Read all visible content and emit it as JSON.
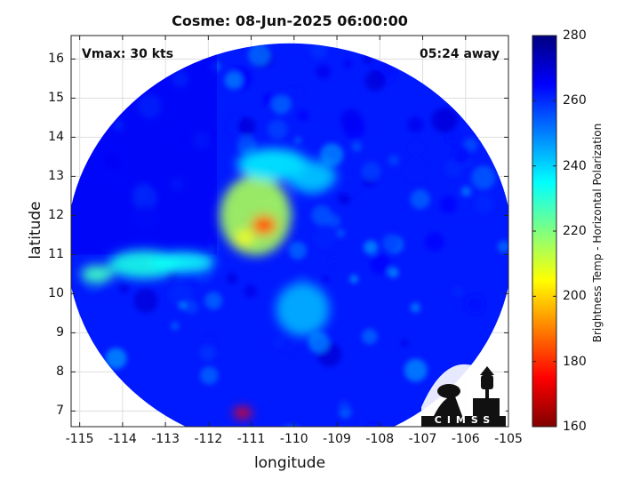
{
  "title": "Cosme: 08-Jun-2025 06:00:00",
  "vmax_label": "Vmax: 30 kts",
  "time_label": "05:24 away",
  "logo_text": "CIMSS",
  "chart_data": {
    "type": "heatmap",
    "xlabel": "longitude",
    "ylabel": "latitude",
    "xlim": [
      -115.2,
      -105
    ],
    "ylim": [
      6.6,
      16.6
    ],
    "xticks": [
      -115,
      -114,
      -113,
      -112,
      -111,
      -110,
      -109,
      -108,
      -107,
      -106,
      -105
    ],
    "xtick_labels": [
      "-115",
      "-114",
      "-113",
      "-112",
      "-111",
      "-110",
      "-109",
      "-108",
      "-107",
      "-106",
      "-105"
    ],
    "yticks": [
      7,
      8,
      9,
      10,
      11,
      12,
      13,
      14,
      15,
      16
    ],
    "ytick_labels": [
      "7",
      "8",
      "9",
      "10",
      "11",
      "12",
      "13",
      "14",
      "15",
      "16"
    ],
    "grid": true,
    "swath": {
      "center_lon": -110.1,
      "center_lat": 11.2,
      "radius_deg": 5.2
    },
    "colorbar": {
      "label": "Brightness Temp - Horizontal Polarization",
      "range": [
        160,
        280
      ],
      "ticks": [
        160,
        180,
        200,
        220,
        240,
        260,
        280
      ],
      "tick_labels": [
        "160",
        "180",
        "200",
        "220",
        "240",
        "260",
        "280"
      ],
      "colors": [
        "#800000",
        "#ff0000",
        "#ff8000",
        "#ffff00",
        "#80ff80",
        "#00ffff",
        "#0080ff",
        "#0000ff",
        "#000080"
      ]
    },
    "features": [
      {
        "name": "core",
        "lon": -110.7,
        "lat": 11.75,
        "value": 185
      },
      {
        "name": "inner-ring",
        "lon": -110.9,
        "lat": 12.0,
        "value": 215
      },
      {
        "name": "north-arc",
        "lon": -110.5,
        "lat": 13.3,
        "value": 235
      },
      {
        "name": "ring-ne",
        "lon": -109.6,
        "lat": 13.0,
        "value": 240
      },
      {
        "name": "western-band-1",
        "lon": -114.6,
        "lat": 10.5,
        "value": 228
      },
      {
        "name": "western-band-2",
        "lon": -113.5,
        "lat": 10.75,
        "value": 232
      },
      {
        "name": "western-band-3",
        "lon": -112.6,
        "lat": 10.8,
        "value": 234
      },
      {
        "name": "south-feeder",
        "lon": -109.8,
        "lat": 9.6,
        "value": 240
      },
      {
        "name": "southern-cell",
        "lon": -111.2,
        "lat": 6.95,
        "value": 175
      }
    ]
  }
}
